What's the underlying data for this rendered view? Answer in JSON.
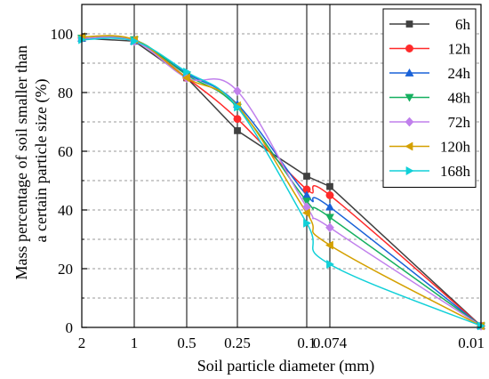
{
  "chart_data": {
    "type": "line",
    "xlabel": "Soil particle diameter (mm)",
    "ylabel": "Mass percentage of soil smaller than a certain particle size (%)",
    "ylabel_lines": [
      "Mass percentage of soil smaller than",
      "a certain particle size (%)"
    ],
    "x_ticks": [
      "2",
      "1",
      "0.5",
      "0.25",
      "0.1",
      "0.074",
      "0.01"
    ],
    "x_tick_values": [
      2,
      1,
      0.5,
      0.25,
      0.1,
      0.074,
      0.01
    ],
    "y_ticks": [
      "0",
      "20",
      "40",
      "60",
      "80",
      "100"
    ],
    "ylim": [
      0,
      110
    ],
    "x_scale": "log, reversed",
    "x_grid": "vertical lines at ticks",
    "y_grid": "dashed minor lines",
    "legend_position": "top-right",
    "x": [
      2,
      1,
      0.5,
      0.25,
      0.1,
      0.074,
      0.01
    ],
    "series": [
      {
        "name": "6h",
        "color": "#404040",
        "marker": "square",
        "values": [
          98.5,
          97.5,
          85,
          67,
          51.5,
          48,
          0.5
        ]
      },
      {
        "name": "12h",
        "color": "#ff2a2a",
        "marker": "circle",
        "values": [
          98.5,
          97.5,
          85,
          71,
          47,
          45,
          0.5
        ]
      },
      {
        "name": "24h",
        "color": "#1a62d8",
        "marker": "triangle-up",
        "values": [
          98.5,
          97.5,
          86.5,
          76,
          45,
          41,
          0.5
        ]
      },
      {
        "name": "48h",
        "color": "#16b060",
        "marker": "triangle-down",
        "values": [
          98.5,
          98,
          86,
          75,
          43,
          37.5,
          0.5
        ]
      },
      {
        "name": "72h",
        "color": "#c080ec",
        "marker": "diamond",
        "values": [
          98.5,
          97.5,
          85,
          80.5,
          41,
          34,
          0.5
        ]
      },
      {
        "name": "120h",
        "color": "#d4a000",
        "marker": "triangle-left",
        "values": [
          99,
          98,
          85,
          75.5,
          39,
          28,
          0.5
        ]
      },
      {
        "name": "168h",
        "color": "#10d0d8",
        "marker": "triangle-right",
        "values": [
          98,
          97.5,
          87,
          75,
          35.5,
          21.5,
          0.5
        ]
      }
    ]
  }
}
